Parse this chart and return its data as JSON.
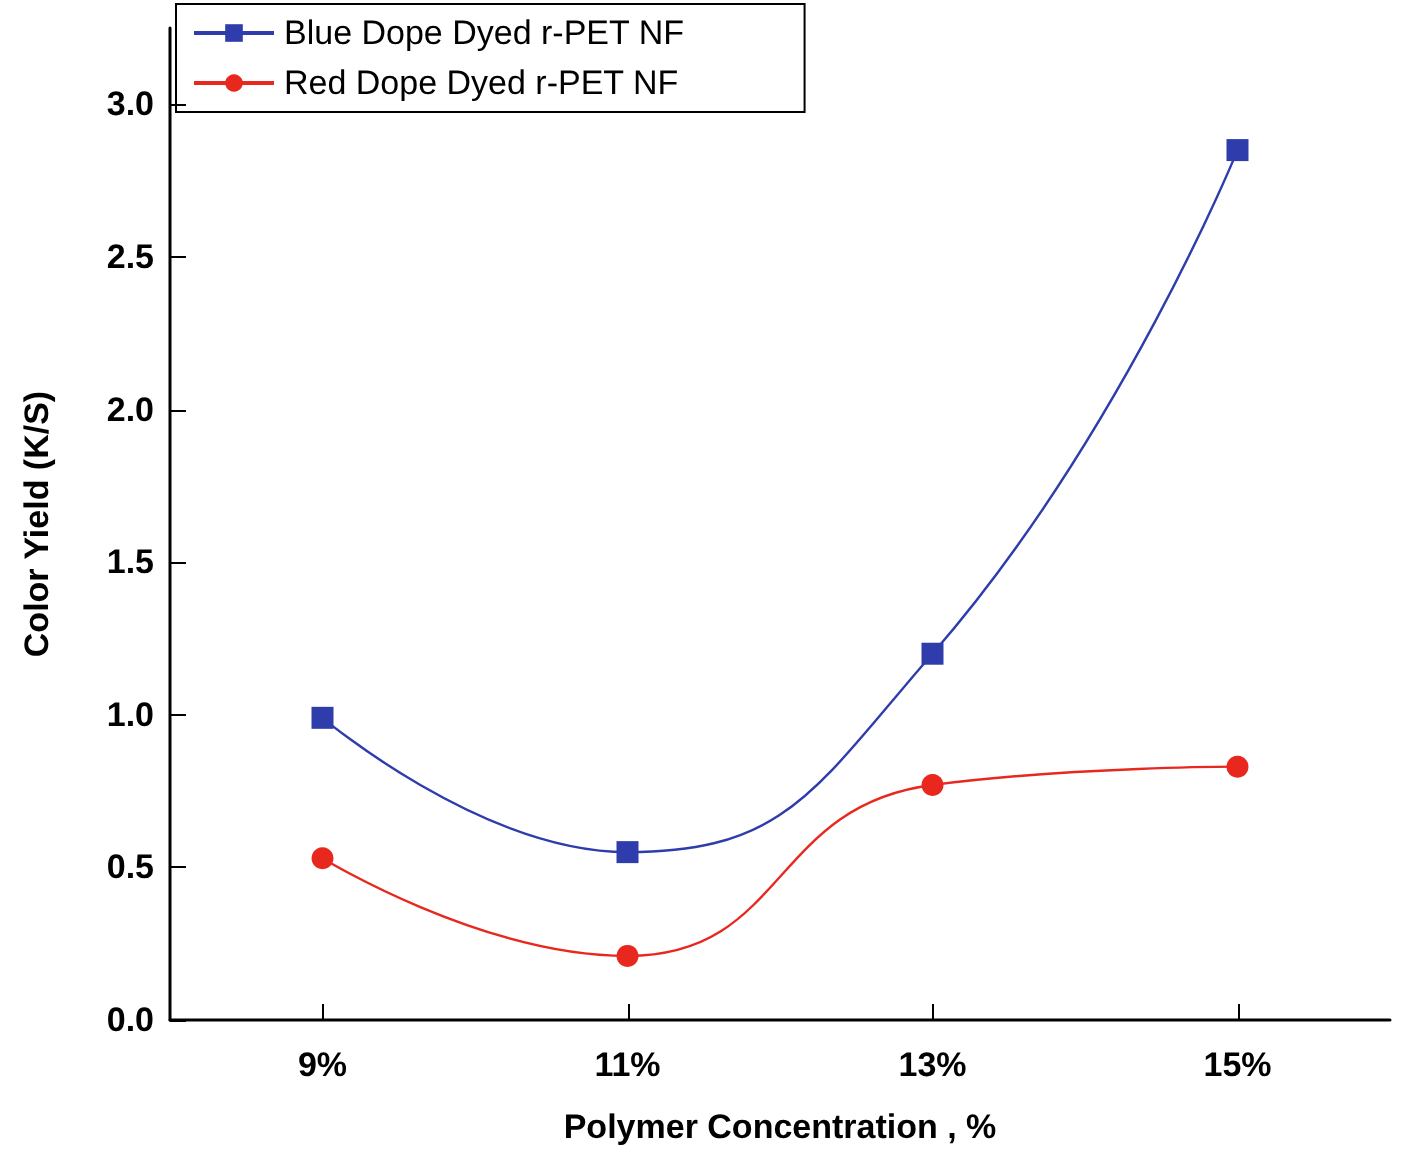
{
  "chart_data": {
    "type": "line",
    "xlabel": "Polymer Concentration , %",
    "ylabel": "Color Yield (K/S)",
    "categories": [
      "9%",
      "11%",
      "13%",
      "15%"
    ],
    "series": [
      {
        "name": "Blue Dope Dyed r-PET NF",
        "color": "#2e3dab",
        "values": [
          0.99,
          0.55,
          1.2,
          2.85
        ],
        "marker": "square"
      },
      {
        "name": "Red Dope Dyed r-PET NF",
        "color": "#e8281e",
        "values": [
          0.53,
          0.21,
          0.77,
          0.83
        ],
        "marker": "circle"
      }
    ],
    "ylim": [
      0,
      3.25
    ],
    "yticks": [
      {
        "value": 0,
        "label": "0.0"
      },
      {
        "value": 0.5,
        "label": "0.5"
      },
      {
        "value": 1,
        "label": "1.0"
      },
      {
        "value": 1.5,
        "label": "1.5"
      },
      {
        "value": 2,
        "label": "2.0"
      },
      {
        "value": 2.5,
        "label": "2.5"
      },
      {
        "value": 3,
        "label": "3.0"
      }
    ],
    "grid": false,
    "legend": "top left",
    "line_style": "solid"
  }
}
